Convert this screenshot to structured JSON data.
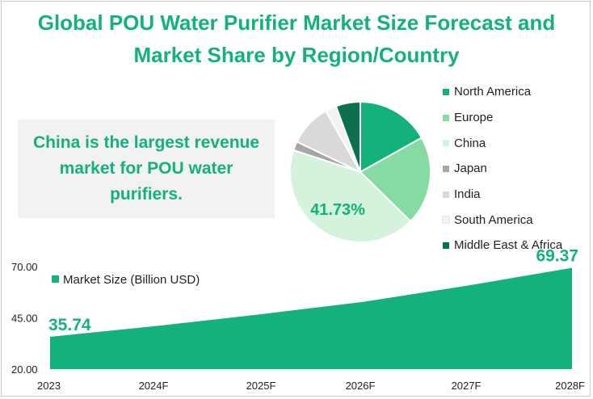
{
  "title_lines": [
    "Global POU Water Purifier Market Size Forecast and",
    "Market Share by Region/Country"
  ],
  "callout_text": "China is the largest revenue market for POU water purifiers.",
  "colors": {
    "accent": "#13b27a",
    "north_america": "#13b27a",
    "europe": "#86dba2",
    "china": "#d4f2dc",
    "japan": "#a6a6a6",
    "india": "#d9d9d9",
    "south_america": "#f2f2f2",
    "middle_east_africa": "#0d6e50"
  },
  "chart_data": [
    {
      "type": "pie",
      "labels": [
        "North America",
        "Europe",
        "China",
        "Japan",
        "India",
        "South America",
        "Middle East & Africa"
      ],
      "values": [
        16.5,
        20.0,
        41.73,
        2.0,
        9.5,
        2.5,
        5.5
      ],
      "data_labels": [
        null,
        null,
        "41.73%",
        null,
        null,
        null,
        null
      ],
      "legend_position": "right"
    },
    {
      "type": "area",
      "title": "",
      "series": [
        {
          "name": "Market Size (Billion USD)",
          "values": [
            35.74,
            40.9,
            46.6,
            52.8,
            60.7,
            69.37
          ]
        }
      ],
      "categories": [
        "2023",
        "2024F",
        "2025F",
        "2026F",
        "2027F",
        "2028F"
      ],
      "data_labels": [
        "35.74",
        null,
        null,
        null,
        null,
        "69.37"
      ],
      "y_ticks": [
        "20.00",
        "45.00",
        "70.00"
      ],
      "ylim": [
        20,
        70
      ],
      "legend_position": "top-left",
      "grid": false
    }
  ]
}
